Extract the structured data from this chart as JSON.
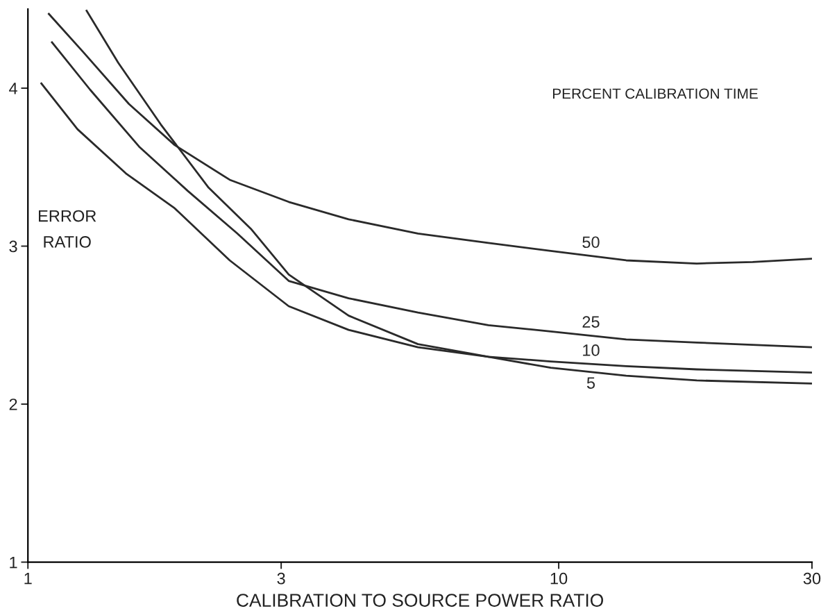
{
  "chart_data": {
    "type": "line",
    "xlabel": "CALIBRATION TO SOURCE POWER RATIO",
    "ylabel": "ERROR\nRATIO",
    "legend_title": "PERCENT CALIBRATION TIME",
    "log": "x",
    "xlim": [
      1,
      30
    ],
    "xticks": [
      1,
      3,
      10,
      30
    ],
    "ylim": [
      1,
      4.5
    ],
    "yticks": [
      1,
      2,
      3,
      4
    ],
    "grid": false,
    "legend": false,
    "marker": "none",
    "line_style": "solid",
    "series": [
      {
        "name": "50",
        "color": "#2a2a2a",
        "x": [
          1.095,
          1.27,
          1.55,
          1.89,
          2.4,
          3.1,
          4.02,
          5.43,
          7.37,
          9.66,
          13.4,
          18.2,
          23.2,
          30.0
        ],
        "values": [
          4.47,
          4.23,
          3.9,
          3.64,
          3.42,
          3.28,
          3.17,
          3.08,
          3.02,
          2.97,
          2.91,
          2.89,
          2.9,
          2.92
        ]
      },
      {
        "name": "25",
        "color": "#2a2a2a",
        "x": [
          1.11,
          1.31,
          1.62,
          2.0,
          2.48,
          3.1,
          4.02,
          5.43,
          7.37,
          9.66,
          13.4,
          18.2,
          30.0
        ],
        "values": [
          4.29,
          3.99,
          3.63,
          3.35,
          3.08,
          2.78,
          2.67,
          2.58,
          2.5,
          2.46,
          2.41,
          2.39,
          2.36
        ]
      },
      {
        "name": "10",
        "color": "#2a2a2a",
        "x": [
          1.06,
          1.24,
          1.53,
          1.89,
          2.4,
          3.1,
          4.02,
          5.43,
          7.37,
          9.66,
          13.4,
          18.2,
          30.0
        ],
        "values": [
          4.03,
          3.74,
          3.46,
          3.24,
          2.91,
          2.62,
          2.47,
          2.36,
          2.3,
          2.27,
          2.24,
          2.22,
          2.2
        ]
      },
      {
        "name": "5",
        "color": "#2a2a2a",
        "x": [
          1.29,
          1.48,
          1.78,
          2.19,
          2.63,
          3.1,
          4.02,
          5.43,
          7.37,
          9.66,
          13.4,
          18.2,
          30.0
        ],
        "values": [
          4.49,
          4.16,
          3.77,
          3.37,
          3.11,
          2.82,
          2.56,
          2.38,
          2.3,
          2.23,
          2.18,
          2.15,
          2.13
        ]
      }
    ]
  }
}
